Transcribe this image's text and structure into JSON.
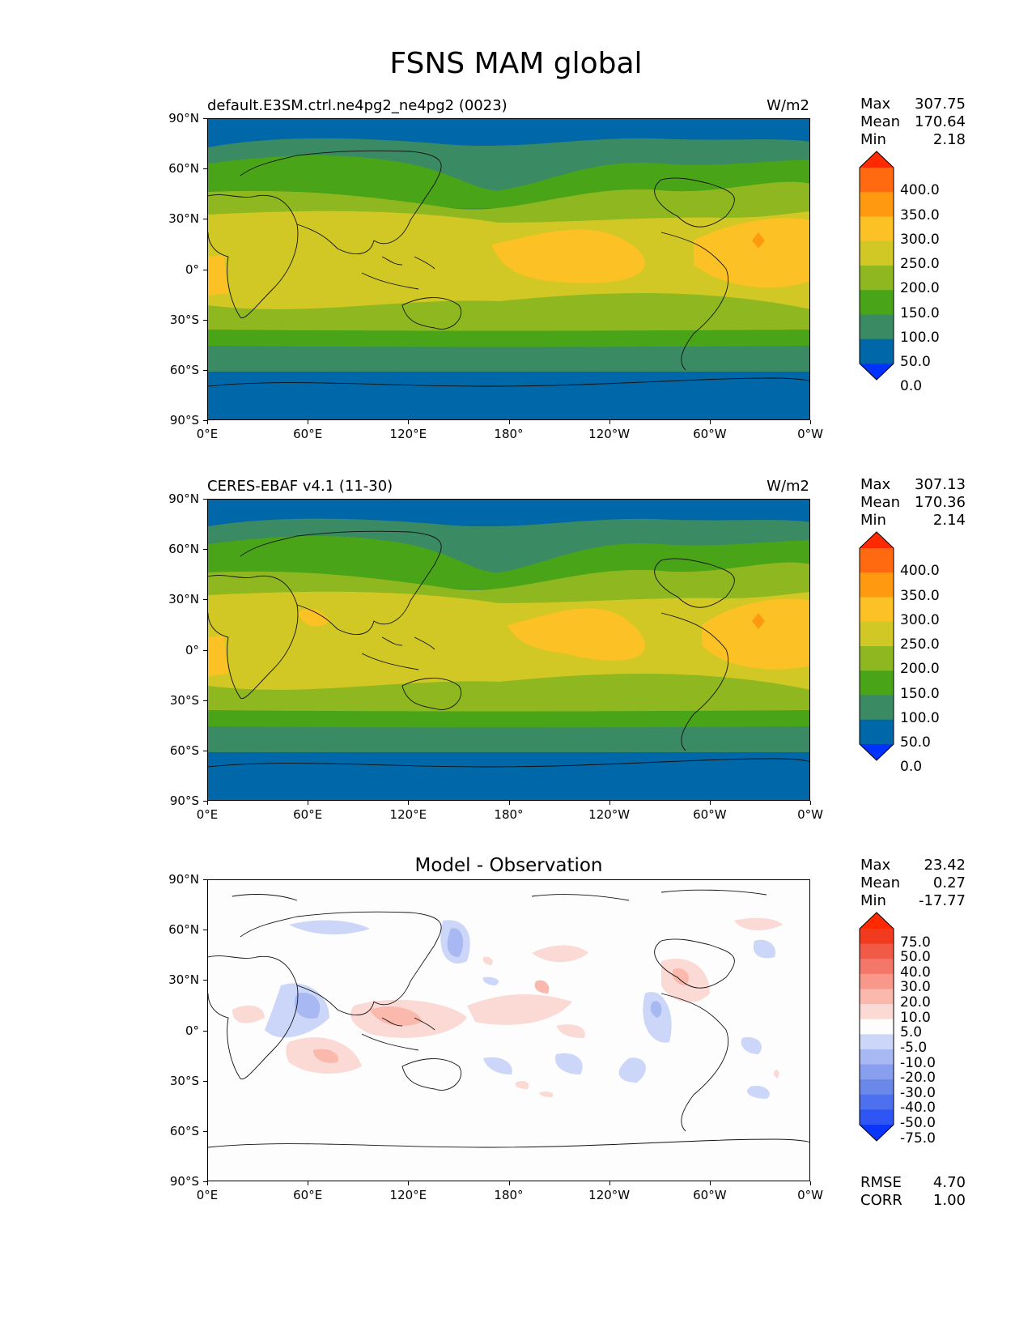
{
  "figure_title": "FSNS MAM global",
  "axes": {
    "lat_labels": [
      "90°N",
      "60°N",
      "30°N",
      "0°",
      "30°S",
      "60°S",
      "90°S"
    ],
    "lon_labels": [
      "0°E",
      "60°E",
      "120°E",
      "180°",
      "120°W",
      "60°W",
      "0°W"
    ]
  },
  "panels": [
    {
      "subtitle": "default.E3SM.ctrl.ne4pg2_ne4pg2 (0023)",
      "units": "W/m2",
      "stats": {
        "max_label": "Max",
        "max": "307.75",
        "mean_label": "Mean",
        "mean": "170.64",
        "min_label": "Min",
        "min": "2.18"
      },
      "colorbar_labels": [
        "400.0",
        "350.0",
        "300.0",
        "250.0",
        "200.0",
        "150.0",
        "100.0",
        "50.0",
        "0.0"
      ]
    },
    {
      "subtitle": "CERES-EBAF v4.1 (11-30)",
      "units": "W/m2",
      "stats": {
        "max_label": "Max",
        "max": "307.13",
        "mean_label": "Mean",
        "mean": "170.36",
        "min_label": "Min",
        "min": "2.14"
      },
      "colorbar_labels": [
        "400.0",
        "350.0",
        "300.0",
        "250.0",
        "200.0",
        "150.0",
        "100.0",
        "50.0",
        "0.0"
      ]
    },
    {
      "subtitle": "Model - Observation",
      "units": "",
      "stats": {
        "max_label": "Max",
        "max": "23.42",
        "mean_label": "Mean",
        "mean": "0.27",
        "min_label": "Min",
        "min": "-17.77"
      },
      "colorbar_labels": [
        "75.0",
        "50.0",
        "40.0",
        "30.0",
        "20.0",
        "10.0",
        "5.0",
        "-5.0",
        "-10.0",
        "-20.0",
        "-30.0",
        "-40.0",
        "-50.0",
        "-75.0"
      ],
      "rmse_label": "RMSE",
      "rmse": "4.70",
      "corr_label": "CORR",
      "corr": "1.00"
    }
  ],
  "colors": {
    "flux_levels": [
      "#0033ff",
      "#0068a8",
      "#3a8a64",
      "#4aa418",
      "#8fb820",
      "#d2c825",
      "#fcc124",
      "#ff9a10",
      "#ff6a10",
      "#ff2a00"
    ],
    "diff_levels": [
      "#0a35ff",
      "#2f55f5",
      "#4d70ee",
      "#6a88ea",
      "#889ff0",
      "#a8b8f3",
      "#ccd6f8",
      "#fdfdfd",
      "#fbd9d4",
      "#fbb8ad",
      "#f8988a",
      "#f4786a",
      "#f25a48",
      "#f23a1e",
      "#ff2a00"
    ]
  }
}
